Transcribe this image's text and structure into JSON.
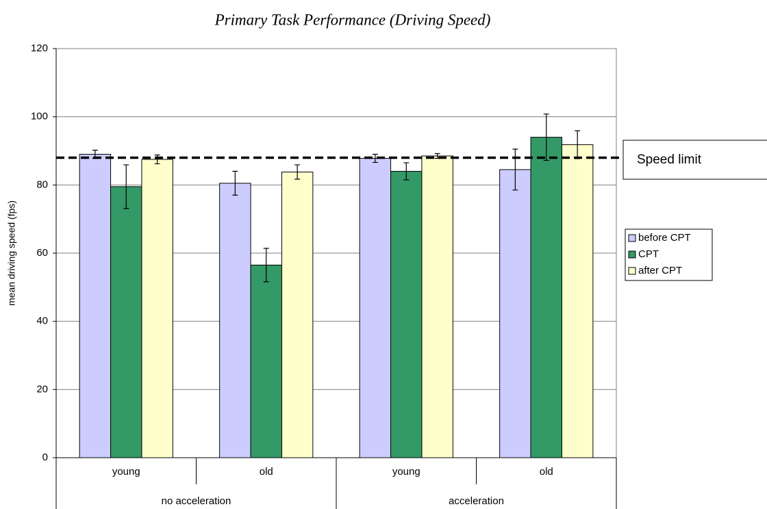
{
  "chart_data": {
    "type": "bar",
    "title": "Primary Task Performance (Driving Speed)",
    "y_label": "mean driving speed (fps)",
    "categories": [
      "young",
      "old",
      "young",
      "old"
    ],
    "groups": [
      "no acceleration",
      "acceleration"
    ],
    "series": [
      {
        "name": "before CPT",
        "color": "#ccccff",
        "values": [
          89,
          80.5,
          87.8,
          84.5
        ],
        "errors": [
          1.2,
          3.5,
          1.2,
          6
        ]
      },
      {
        "name": "CPT",
        "color": "#339966",
        "values": [
          79.5,
          56.5,
          84,
          94
        ],
        "errors": [
          6.4,
          4.9,
          2.5,
          6.8
        ]
      },
      {
        "name": "after CPT",
        "color": "#ffffcc",
        "values": [
          87.5,
          83.8,
          88.5,
          91.8
        ],
        "errors": [
          1.3,
          2.1,
          0.7,
          4.1
        ]
      }
    ],
    "reference_line": {
      "value": 88,
      "label": "Speed limit"
    },
    "ylim": [
      0,
      120
    ],
    "yticks": [
      0,
      20,
      40,
      60,
      80,
      100,
      120
    ],
    "grid": true,
    "legend": "right"
  }
}
